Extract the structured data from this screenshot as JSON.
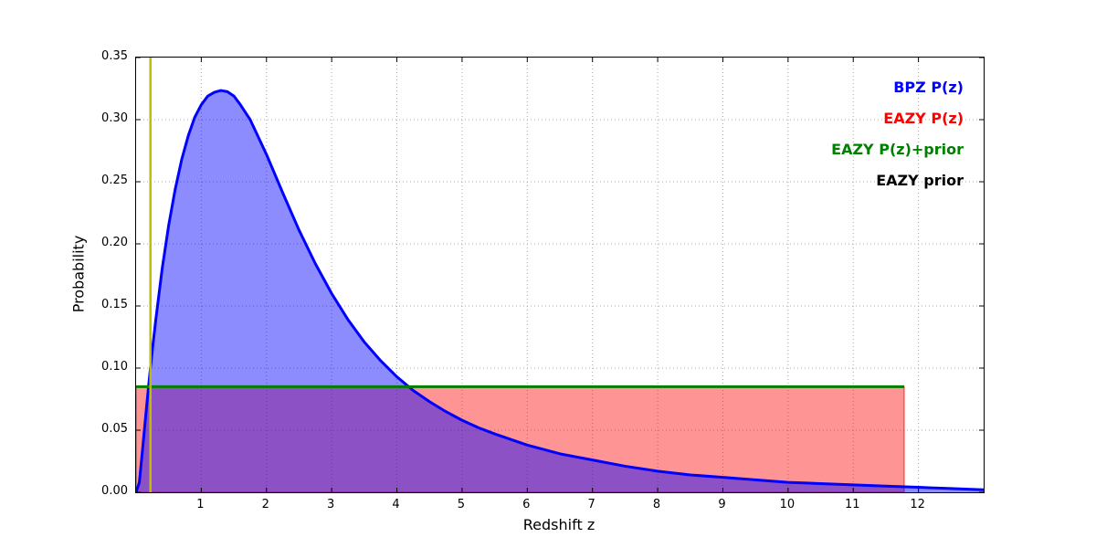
{
  "figure": {
    "background": "#ffffff"
  },
  "legend": {
    "position": "upper right",
    "items": [
      {
        "label": "BPZ P(z)",
        "color": "#0000ff"
      },
      {
        "label": "EAZY P(z)",
        "color": "#ff0000"
      },
      {
        "label": "EAZY P(z)+prior",
        "color": "#008000"
      },
      {
        "label": "EAZY prior",
        "color": "#000000"
      }
    ]
  },
  "chart_data": {
    "type": "line",
    "title": "",
    "xlabel": "Redshift z",
    "ylabel": "Probability",
    "xlim": [
      0,
      13
    ],
    "ylim": [
      0,
      0.35
    ],
    "xticks": [
      1,
      2,
      3,
      4,
      5,
      6,
      7,
      8,
      9,
      10,
      11,
      12
    ],
    "yticks": [
      0.0,
      0.05,
      0.1,
      0.15,
      0.2,
      0.25,
      0.3,
      0.35
    ],
    "grid": true,
    "grid_style": "dotted",
    "grid_color": "#a8a8a8",
    "series": [
      {
        "name": "EAZY P(z)",
        "type": "filled_rect",
        "color": "#ff0000",
        "fill_opacity": 0.42,
        "x_range": [
          0,
          11.78
        ],
        "height": 0.085
      },
      {
        "name": "BPZ P(z)",
        "type": "curve",
        "color": "#0000ff",
        "fill": true,
        "fill_opacity": 0.45,
        "line_width": 3,
        "x": [
          0.0,
          0.05,
          0.1,
          0.15,
          0.2,
          0.25,
          0.3,
          0.4,
          0.5,
          0.6,
          0.7,
          0.8,
          0.9,
          1.0,
          1.1,
          1.2,
          1.3,
          1.4,
          1.5,
          1.6,
          1.75,
          2.0,
          2.25,
          2.5,
          2.75,
          3.0,
          3.25,
          3.5,
          3.75,
          4.0,
          4.25,
          4.5,
          4.75,
          5.0,
          5.25,
          5.5,
          6.0,
          6.5,
          7.0,
          7.5,
          8.0,
          8.5,
          9.0,
          9.5,
          10.0,
          10.5,
          11.0,
          11.5,
          12.0,
          12.5,
          13.0
        ],
        "y": [
          0.0,
          0.008,
          0.035,
          0.063,
          0.09,
          0.115,
          0.138,
          0.18,
          0.215,
          0.244,
          0.268,
          0.287,
          0.302,
          0.312,
          0.319,
          0.322,
          0.3235,
          0.3225,
          0.319,
          0.312,
          0.3,
          0.272,
          0.241,
          0.211,
          0.184,
          0.16,
          0.139,
          0.121,
          0.106,
          0.093,
          0.082,
          0.073,
          0.065,
          0.058,
          0.052,
          0.047,
          0.038,
          0.031,
          0.026,
          0.021,
          0.017,
          0.014,
          0.012,
          0.01,
          0.008,
          0.007,
          0.006,
          0.005,
          0.004,
          0.003,
          0.002
        ]
      },
      {
        "name": "EAZY prior",
        "type": "hline",
        "color": "#000000",
        "line_width": 2,
        "y_value": 0.085,
        "x_range": [
          0,
          11.78
        ]
      },
      {
        "name": "EAZY P(z)+prior",
        "type": "hline",
        "color": "#008000",
        "line_width": 3,
        "y_value": 0.085,
        "x_range": [
          0,
          11.78
        ]
      },
      {
        "name": "redshift marker",
        "type": "vline",
        "color": "#bfbf00",
        "line_width": 2.5,
        "x_value": 0.22
      }
    ]
  }
}
